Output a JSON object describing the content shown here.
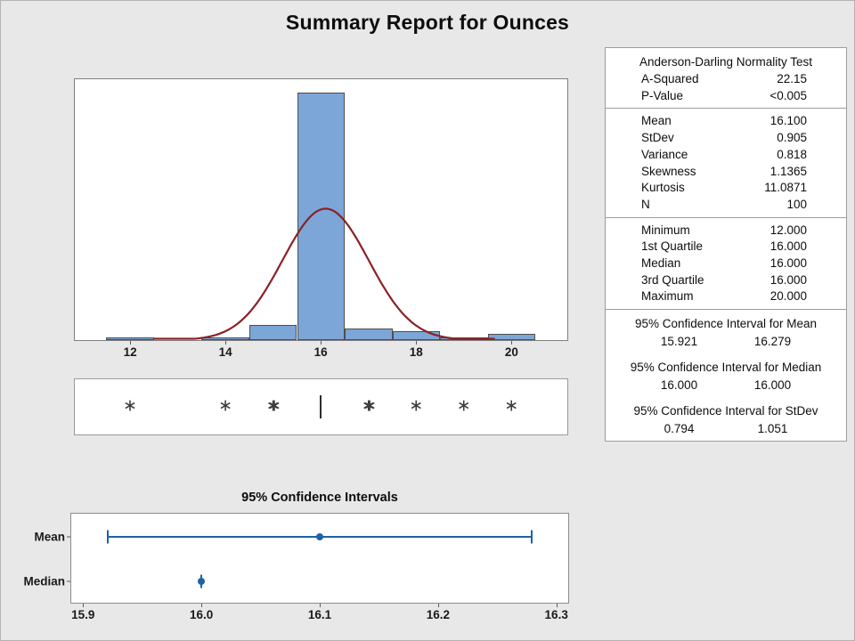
{
  "title": "Summary Report for Ounces",
  "colors": {
    "background": "#e8e8e8",
    "bar_fill": "#7ca6d8",
    "bar_border": "#4d4d4d",
    "curve_red": "#8b2125",
    "ci_blue": "#1f62a8",
    "marker_gray": "#3d3d3d"
  },
  "stats_panel": {
    "sections": [
      {
        "header": "Anderson-Darling Normality Test",
        "rows": [
          [
            "A-Squared",
            "22.15"
          ],
          [
            "P-Value",
            "<0.005"
          ]
        ],
        "divider_after": true
      },
      {
        "rows": [
          [
            "Mean",
            "16.100"
          ],
          [
            "StDev",
            "0.905"
          ],
          [
            "Variance",
            "0.818"
          ],
          [
            "Skewness",
            "1.1365"
          ],
          [
            "Kurtosis",
            "11.0871"
          ],
          [
            "N",
            "100"
          ]
        ],
        "divider_after": true
      },
      {
        "rows": [
          [
            "Minimum",
            "12.000"
          ],
          [
            "1st Quartile",
            "16.000"
          ],
          [
            "Median",
            "16.000"
          ],
          [
            "3rd Quartile",
            "16.000"
          ],
          [
            "Maximum",
            "20.000"
          ]
        ],
        "divider_after": true
      },
      {
        "header": "95% Confidence Interval for Mean",
        "pair": [
          "15.921",
          "16.279"
        ]
      },
      {
        "header": "95% Confidence Interval for Median",
        "pair": [
          "16.000",
          "16.000"
        ]
      },
      {
        "header": "95% Confidence Interval for StDev",
        "pair": [
          "0.794",
          "1.051"
        ]
      }
    ]
  },
  "chart_data": [
    {
      "type": "bar",
      "name": "histogram-with-normal-curve",
      "title": "",
      "categories": [
        12,
        13,
        14,
        15,
        16,
        17,
        18,
        19,
        20
      ],
      "values": [
        1,
        0,
        1,
        5,
        83,
        4,
        3,
        1,
        2
      ],
      "bin_width": 1,
      "x_range": [
        10.84,
        21.17
      ],
      "y_range": [
        0,
        87.5
      ],
      "x_ticks": [
        {
          "v": 12,
          "label": "12"
        },
        {
          "v": 14,
          "label": "14"
        },
        {
          "v": 16,
          "label": "16"
        },
        {
          "v": 18,
          "label": "18"
        },
        {
          "v": 20,
          "label": "20"
        }
      ],
      "grid": false,
      "normal_curve": {
        "mean": 16.1,
        "stdev": 0.905,
        "n": 100,
        "draw_from": 12.5,
        "draw_to": 19.65
      }
    },
    {
      "type": "scatter",
      "name": "outlier-strip-boxplot",
      "outliers": [
        {
          "v": 12,
          "overlap": false
        },
        {
          "v": 14,
          "overlap": false
        },
        {
          "v": 15,
          "overlap": true
        },
        {
          "v": 17,
          "overlap": true
        },
        {
          "v": 18,
          "overlap": false
        },
        {
          "v": 19,
          "overlap": false
        },
        {
          "v": 20,
          "overlap": false
        }
      ],
      "median_line": 16,
      "x_range": [
        10.84,
        21.17
      ]
    },
    {
      "type": "line",
      "name": "confidence-interval-plot",
      "title": "95% Confidence Intervals",
      "categories": [
        "Mean",
        "Median"
      ],
      "intervals": [
        [
          15.921,
          16.279
        ],
        [
          16.0,
          16.0
        ]
      ],
      "points": [
        16.1,
        16.0
      ],
      "row_fractions": [
        0.25,
        0.75
      ],
      "x_range": [
        15.89,
        16.31
      ],
      "x_ticks": [
        {
          "v": 15.9,
          "label": "15.9"
        },
        {
          "v": 16.0,
          "label": "16.0"
        },
        {
          "v": 16.1,
          "label": "16.1"
        },
        {
          "v": 16.2,
          "label": "16.2"
        },
        {
          "v": 16.3,
          "label": "16.3"
        }
      ],
      "grid": false,
      "legend": "none"
    }
  ]
}
